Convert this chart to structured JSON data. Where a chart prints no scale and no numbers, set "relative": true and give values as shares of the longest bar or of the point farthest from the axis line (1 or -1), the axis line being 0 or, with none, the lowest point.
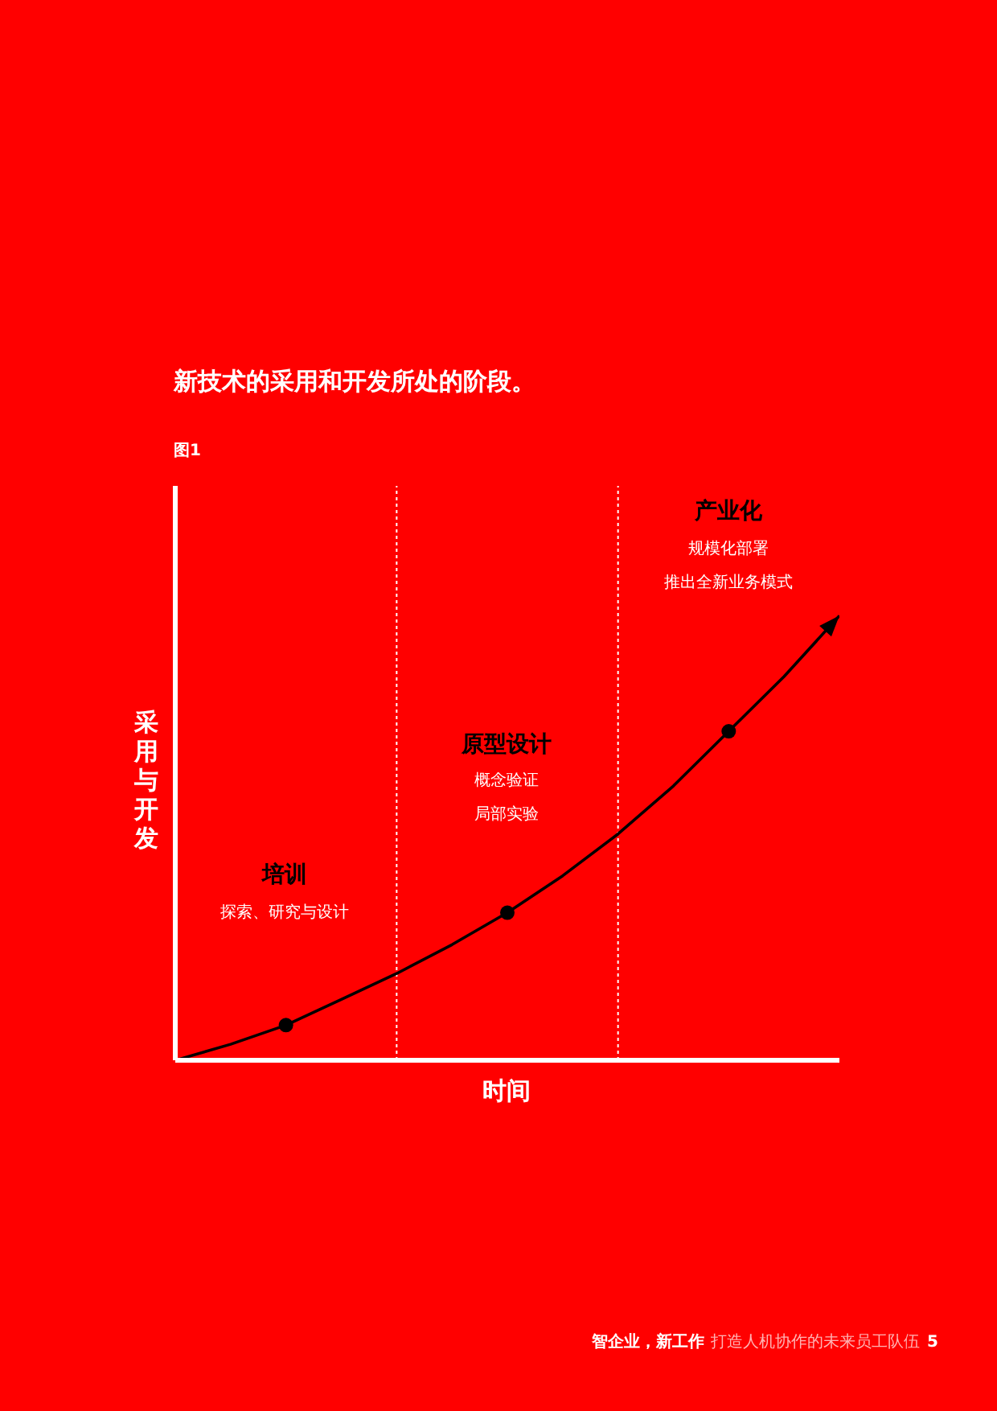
{
  "chart_data": {
    "type": "line",
    "title": "新技术的采用和开发所处的阶段。",
    "subtitle": "图1",
    "xlabel": "时间",
    "ylabel": "采用与开发",
    "relative": true,
    "marker": "none",
    "line_style": "solid",
    "categories": [
      null,
      null,
      null,
      null,
      null,
      null,
      null,
      null,
      null,
      null,
      null,
      null,
      null
    ],
    "series": [
      {
        "color": "#000000",
        "values": [
          0,
          0.036,
          0.079,
          0.137,
          0.195,
          0.26,
          0.332,
          0.415,
          0.509,
          0.617,
          0.74,
          0.863,
          1
        ]
      }
    ],
    "annotations": [
      "培训",
      "探索、研究与设计",
      "原型设计",
      "概念验证",
      "局部实验",
      "产业化",
      "规模化部署",
      "推出全新业务模式",
      "智企业，新工作",
      "打造人机协作的未来员工队伍",
      "5"
    ]
  }
}
